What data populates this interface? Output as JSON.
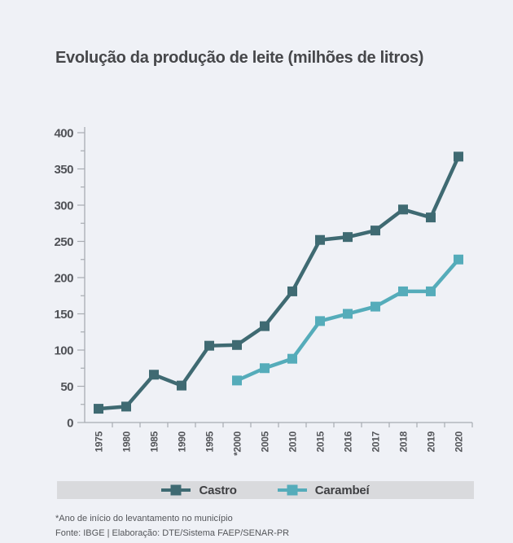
{
  "page": {
    "background": "#eff1f6"
  },
  "chart_data": {
    "type": "line",
    "title": "Evolução da produção de leite (milhões de litros)",
    "categories": [
      "1975",
      "1980",
      "1985",
      "1990",
      "1995",
      "*2000",
      "2005",
      "2010",
      "2015",
      "2016",
      "2017",
      "2018",
      "2019",
      "2020"
    ],
    "series": [
      {
        "name": "Castro",
        "color": "#3f6a72",
        "values": [
          19,
          22,
          66,
          51,
          106,
          107,
          133,
          181,
          252,
          256,
          265,
          294,
          283,
          367
        ]
      },
      {
        "name": "Carambeí",
        "color": "#55acba",
        "values": [
          null,
          null,
          null,
          null,
          null,
          58,
          75,
          88,
          140,
          150,
          160,
          181,
          181,
          225
        ]
      }
    ],
    "ylim": [
      0,
      400
    ],
    "ytick_step": 50,
    "ytick_minor_step": 25,
    "xlabel": "",
    "ylabel": "",
    "grid": false,
    "legend_position": "bottom",
    "marker": "square"
  },
  "colors": {
    "axis": "#a8acb2",
    "tick_label": "#505257",
    "legend_bar": "#d9dadd",
    "title_text": "#46474a",
    "footnote_text": "#54565a"
  },
  "footer": {
    "note": "*Ano de início do levantamento no município",
    "source": "Fonte: IBGE | Elaboração: DTE/Sistema FAEP/SENAR-PR"
  }
}
